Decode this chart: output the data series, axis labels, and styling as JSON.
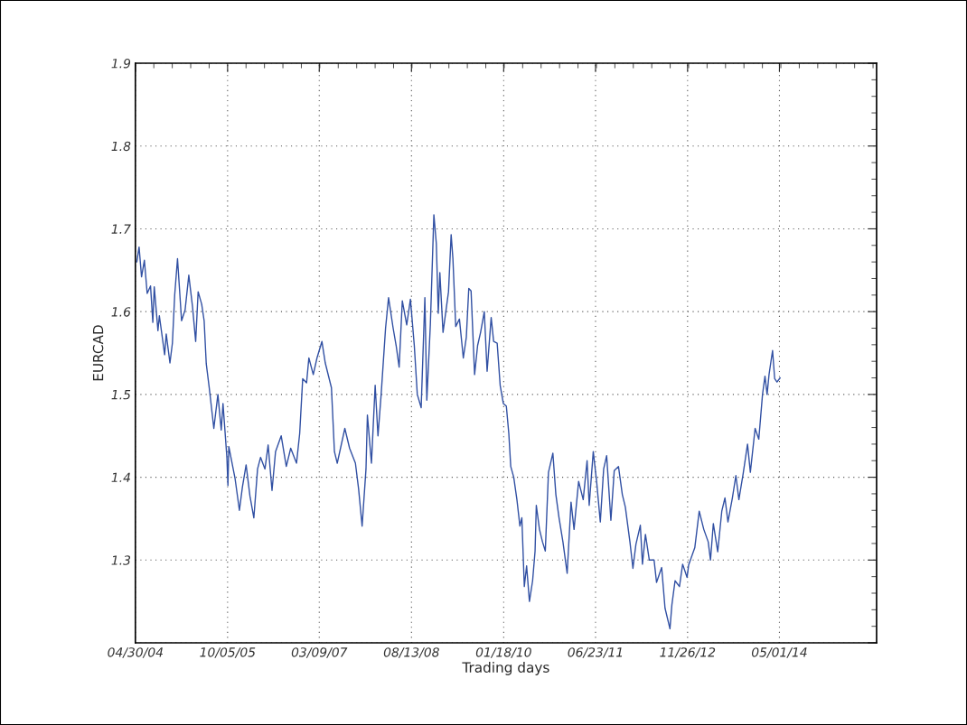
{
  "chart_data": {
    "type": "line",
    "xlabel": "Trading days",
    "ylabel": "EURCAD",
    "xlim": [
      "2004-04-30",
      "2015-11-03"
    ],
    "ylim": [
      1.2,
      1.9
    ],
    "xticks": [
      {
        "value": "2004-04-30",
        "label": "04/30/04"
      },
      {
        "value": "2005-10-05",
        "label": "10/05/05"
      },
      {
        "value": "2007-03-09",
        "label": "03/09/07"
      },
      {
        "value": "2008-08-13",
        "label": "08/13/08"
      },
      {
        "value": "2010-01-18",
        "label": "01/18/10"
      },
      {
        "value": "2011-06-23",
        "label": "06/23/11"
      },
      {
        "value": "2012-11-26",
        "label": "11/26/12"
      },
      {
        "value": "2014-05-01",
        "label": "05/01/14"
      }
    ],
    "yticks": [
      {
        "value": 1.2,
        "label": null
      },
      1.3,
      1.4,
      1.5,
      1.6,
      1.7,
      1.8,
      1.9
    ],
    "grid": true,
    "marker": "none",
    "line_style": "solid",
    "series": [
      {
        "color": "#3150a3",
        "x": [
          "2004-05-08",
          "2004-05-21",
          "2004-06-04",
          "2004-06-20",
          "2004-07-06",
          "2004-07-25",
          "2004-08-07",
          "2004-08-15",
          "2004-09-05",
          "2004-09-13",
          "2004-10-13",
          "2004-10-22",
          "2004-11-12",
          "2004-11-26",
          "2004-12-09",
          "2004-12-25",
          "2005-01-17",
          "2005-02-06",
          "2005-02-27",
          "2005-03-20",
          "2005-04-07",
          "2005-04-21",
          "2005-05-11",
          "2005-05-25",
          "2005-06-06",
          "2005-06-23",
          "2005-07-19",
          "2005-08-11",
          "2005-08-30",
          "2005-09-09",
          "2005-10-01",
          "2005-10-07",
          "2005-10-12",
          "2005-11-16",
          "2005-12-11",
          "2005-12-28",
          "2006-01-18",
          "2006-02-09",
          "2006-03-03",
          "2006-03-24",
          "2006-04-10",
          "2006-05-05",
          "2006-05-23",
          "2006-06-14",
          "2006-07-04",
          "2006-08-05",
          "2006-09-03",
          "2006-09-28",
          "2006-10-31",
          "2006-11-18",
          "2006-12-05",
          "2006-12-27",
          "2007-01-09",
          "2007-02-03",
          "2007-02-24",
          "2007-03-24",
          "2007-04-12",
          "2007-05-17",
          "2007-06-03",
          "2007-06-19",
          "2007-08-01",
          "2007-08-28",
          "2007-09-30",
          "2007-10-18",
          "2007-11-07",
          "2007-11-29",
          "2007-12-07",
          "2007-12-30",
          "2008-01-20",
          "2008-02-05",
          "2008-02-23",
          "2008-03-19",
          "2008-04-05",
          "2008-05-01",
          "2008-05-18",
          "2008-06-04",
          "2008-06-22",
          "2008-07-17",
          "2008-08-07",
          "2008-08-29",
          "2008-09-15",
          "2008-10-07",
          "2008-10-28",
          "2008-11-08",
          "2008-11-28",
          "2008-12-18",
          "2009-01-01",
          "2009-01-12",
          "2009-01-21",
          "2009-02-08",
          "2009-02-25",
          "2009-03-11",
          "2009-03-26",
          "2009-04-05",
          "2009-04-21",
          "2009-05-12",
          "2009-06-03",
          "2009-06-20",
          "2009-07-04",
          "2009-07-17",
          "2009-08-06",
          "2009-08-23",
          "2009-09-09",
          "2009-09-30",
          "2009-10-16",
          "2009-11-08",
          "2009-11-22",
          "2009-12-12",
          "2009-12-29",
          "2010-01-16",
          "2010-02-02",
          "2010-02-16",
          "2010-02-27",
          "2010-03-16",
          "2010-04-03",
          "2010-04-20",
          "2010-05-01",
          "2010-05-15",
          "2010-05-28",
          "2010-06-13",
          "2010-07-01",
          "2010-07-15",
          "2010-07-22",
          "2010-08-09",
          "2010-08-26",
          "2010-09-11",
          "2010-09-29",
          "2010-10-24",
          "2010-11-10",
          "2010-11-28",
          "2010-12-20",
          "2011-01-13",
          "2011-02-04",
          "2011-02-21",
          "2011-03-19",
          "2011-04-14",
          "2011-05-06",
          "2011-05-18",
          "2011-06-10",
          "2011-06-29",
          "2011-07-20",
          "2011-08-08",
          "2011-08-25",
          "2011-09-18",
          "2011-10-07",
          "2011-10-31",
          "2011-11-22",
          "2011-12-09",
          "2012-01-04",
          "2012-01-21",
          "2012-02-07",
          "2012-03-03",
          "2012-03-15",
          "2012-04-01",
          "2012-04-23",
          "2012-05-20",
          "2012-06-03",
          "2012-07-02",
          "2012-07-21",
          "2012-08-18",
          "2012-08-29",
          "2012-09-16",
          "2012-10-11",
          "2012-10-29",
          "2012-11-23",
          "2012-12-02",
          "2013-01-06",
          "2013-01-31",
          "2013-02-26",
          "2013-03-23",
          "2013-04-05",
          "2013-04-21",
          "2013-05-16",
          "2013-06-08",
          "2013-06-26",
          "2013-07-13",
          "2013-08-07",
          "2013-08-27",
          "2013-09-13",
          "2013-10-07",
          "2013-11-01",
          "2013-11-17",
          "2013-12-14",
          "2014-01-04",
          "2014-01-25",
          "2014-02-08",
          "2014-02-20",
          "2014-03-03",
          "2014-03-23",
          "2014-04-04",
          "2014-04-17",
          "2014-05-05"
        ],
        "values": [
          1.66,
          1.678,
          1.642,
          1.662,
          1.622,
          1.631,
          1.587,
          1.63,
          1.577,
          1.595,
          1.548,
          1.573,
          1.538,
          1.562,
          1.62,
          1.664,
          1.589,
          1.602,
          1.644,
          1.606,
          1.564,
          1.624,
          1.609,
          1.589,
          1.537,
          1.508,
          1.459,
          1.5,
          1.457,
          1.489,
          1.424,
          1.39,
          1.437,
          1.399,
          1.36,
          1.388,
          1.415,
          1.377,
          1.351,
          1.41,
          1.424,
          1.41,
          1.439,
          1.384,
          1.431,
          1.45,
          1.413,
          1.435,
          1.417,
          1.453,
          1.519,
          1.514,
          1.544,
          1.524,
          1.544,
          1.564,
          1.538,
          1.508,
          1.431,
          1.417,
          1.459,
          1.435,
          1.417,
          1.386,
          1.341,
          1.41,
          1.475,
          1.417,
          1.511,
          1.45,
          1.5,
          1.58,
          1.617,
          1.58,
          1.559,
          1.533,
          1.613,
          1.584,
          1.615,
          1.559,
          1.5,
          1.484,
          1.617,
          1.493,
          1.584,
          1.717,
          1.682,
          1.598,
          1.647,
          1.575,
          1.602,
          1.624,
          1.693,
          1.664,
          1.582,
          1.591,
          1.544,
          1.569,
          1.628,
          1.625,
          1.524,
          1.559,
          1.575,
          1.6,
          1.528,
          1.593,
          1.564,
          1.562,
          1.511,
          1.489,
          1.486,
          1.453,
          1.413,
          1.4,
          1.373,
          1.341,
          1.351,
          1.268,
          1.293,
          1.25,
          1.275,
          1.311,
          1.366,
          1.337,
          1.322,
          1.311,
          1.406,
          1.429,
          1.379,
          1.351,
          1.322,
          1.284,
          1.37,
          1.337,
          1.395,
          1.373,
          1.42,
          1.366,
          1.431,
          1.395,
          1.346,
          1.41,
          1.426,
          1.348,
          1.408,
          1.413,
          1.379,
          1.364,
          1.322,
          1.29,
          1.319,
          1.342,
          1.295,
          1.331,
          1.3,
          1.3,
          1.273,
          1.291,
          1.242,
          1.217,
          1.246,
          1.275,
          1.268,
          1.295,
          1.279,
          1.294,
          1.315,
          1.359,
          1.337,
          1.322,
          1.3,
          1.344,
          1.31,
          1.359,
          1.375,
          1.346,
          1.375,
          1.402,
          1.373,
          1.404,
          1.44,
          1.406,
          1.459,
          1.446,
          1.5,
          1.522,
          1.5,
          1.524,
          1.553,
          1.519,
          1.515,
          1.52
        ]
      }
    ]
  }
}
